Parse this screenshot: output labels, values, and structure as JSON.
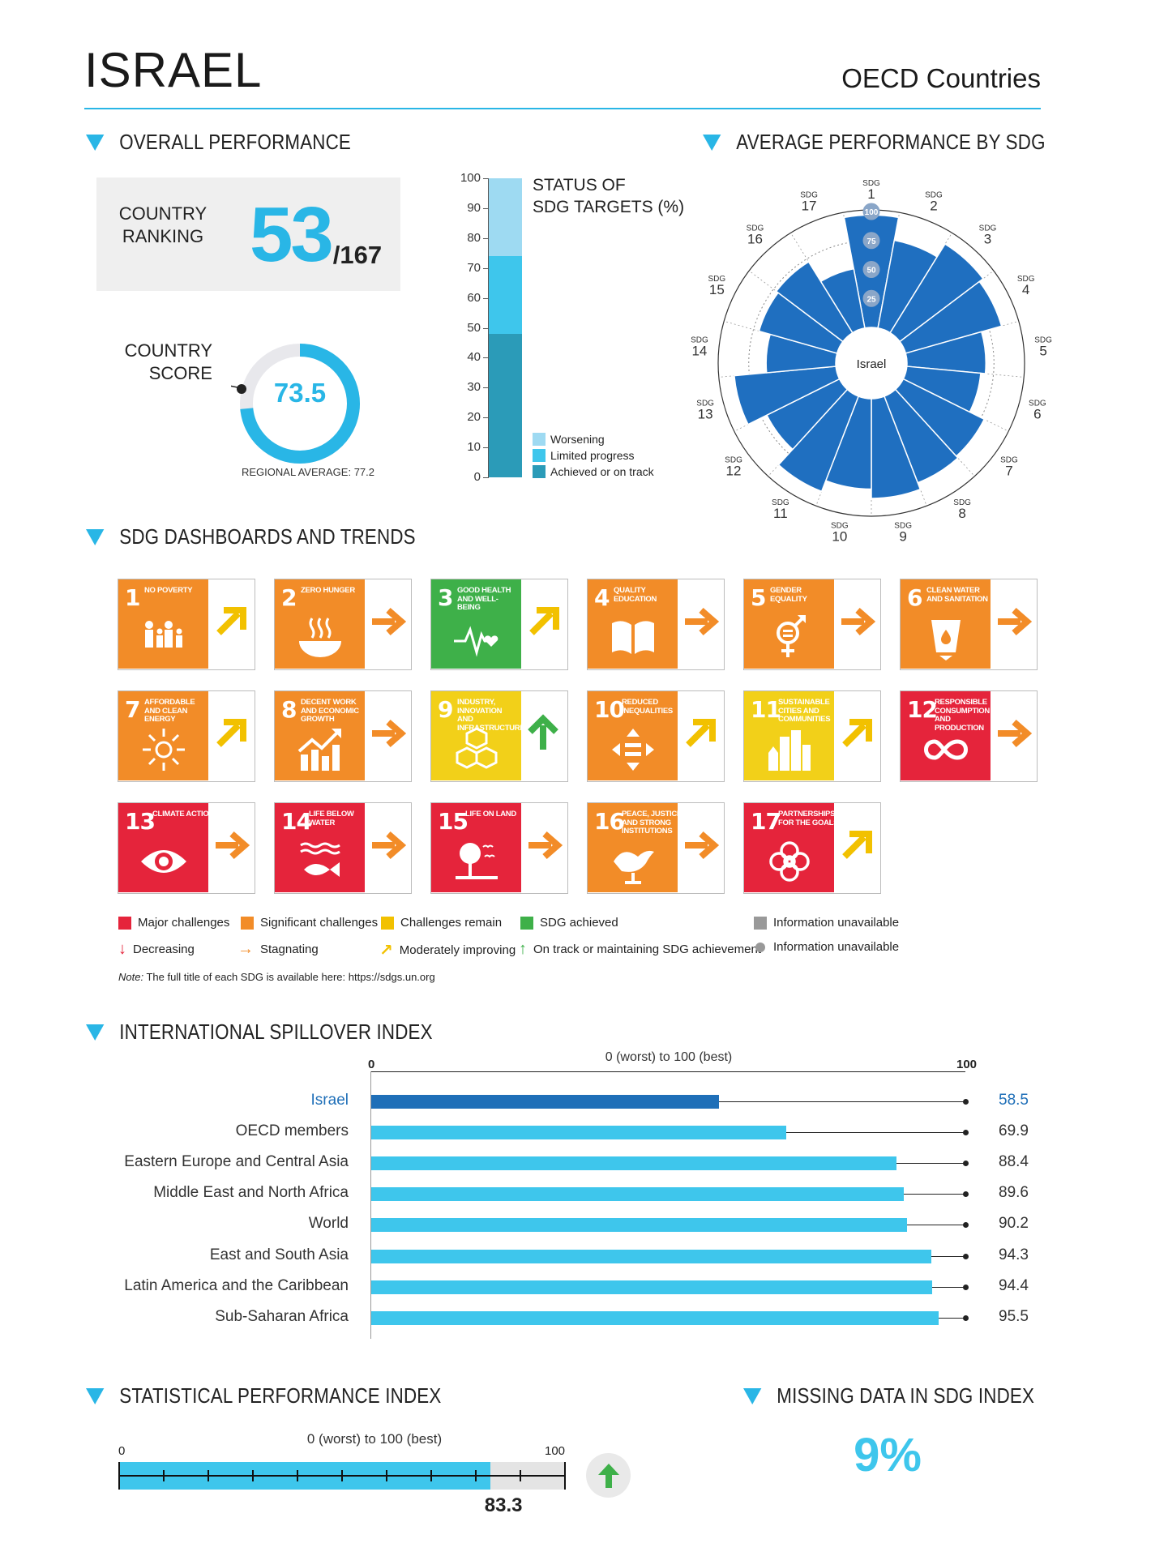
{
  "header": {
    "country": "ISRAEL",
    "group": "OECD Countries"
  },
  "overall": {
    "heading": "OVERALL PERFORMANCE",
    "ranking_label_1": "COUNTRY",
    "ranking_label_2": "RANKING",
    "rank": "53",
    "rank_of": "/167",
    "score_label_1": "COUNTRY",
    "score_label_2": "SCORE",
    "score": "73.5",
    "score_value": 73.5,
    "regional_average": "REGIONAL AVERAGE: 77.2"
  },
  "status": {
    "title_1": "STATUS OF",
    "title_2": "SDG TARGETS (%)",
    "ticks": [
      "100",
      "90",
      "80",
      "70",
      "60",
      "50",
      "40",
      "30",
      "20",
      "10",
      "0"
    ],
    "segments": [
      {
        "name": "Achieved or on track",
        "value": 48,
        "color": "#2b9bb8"
      },
      {
        "name": "Limited progress",
        "value": 26,
        "color": "#3ec6ec"
      },
      {
        "name": "Worsening",
        "value": 26,
        "color": "#9edaf2"
      }
    ],
    "legend": [
      "Worsening",
      "Limited progress",
      "Achieved or on track"
    ]
  },
  "radar": {
    "heading": "AVERAGE PERFORMANCE BY SDG",
    "center_label": "Israel",
    "ring_labels": [
      "100",
      "75",
      "50",
      "25"
    ],
    "sdg_prefix": "SDG",
    "goal_numbers": [
      "1",
      "2",
      "3",
      "4",
      "5",
      "6",
      "7",
      "8",
      "9",
      "10",
      "11",
      "12",
      "13",
      "14",
      "15",
      "16",
      "17"
    ],
    "scores": [
      97,
      77,
      90,
      86,
      68,
      64,
      78,
      80,
      86,
      78,
      88,
      70,
      88,
      60,
      70,
      72,
      52
    ]
  },
  "dashboards": {
    "heading": "SDG DASHBOARDS AND TRENDS",
    "tiles": [
      {
        "num": "1",
        "name": "No poverty",
        "color": "#e5243b",
        "bg": "#f28c28",
        "trend": "moderate",
        "trend_color": "#f2c100",
        "icon": "family-icon"
      },
      {
        "num": "2",
        "name": "Zero hunger",
        "bg": "#f28c28",
        "trend": "stagnating",
        "trend_color": "#f28c28",
        "icon": "bowl-icon"
      },
      {
        "num": "3",
        "name": "Good health and well-being",
        "bg": "#3eb049",
        "trend": "moderate",
        "trend_color": "#f2c100",
        "icon": "heartbeat-icon"
      },
      {
        "num": "4",
        "name": "Quality education",
        "bg": "#f28c28",
        "trend": "stagnating",
        "trend_color": "#f28c28",
        "icon": "book-icon"
      },
      {
        "num": "5",
        "name": "Gender equality",
        "bg": "#f28c28",
        "trend": "stagnating",
        "trend_color": "#f28c28",
        "icon": "gender-icon"
      },
      {
        "num": "6",
        "name": "Clean water and sanitation",
        "bg": "#f28c28",
        "trend": "stagnating",
        "trend_color": "#f28c28",
        "icon": "water-icon"
      },
      {
        "num": "7",
        "name": "Affordable and clean energy",
        "bg": "#f28c28",
        "trend": "moderate",
        "trend_color": "#f2c100",
        "icon": "sun-icon"
      },
      {
        "num": "8",
        "name": "Decent work and economic growth",
        "bg": "#f28c28",
        "trend": "stagnating",
        "trend_color": "#f28c28",
        "icon": "growth-icon"
      },
      {
        "num": "9",
        "name": "Industry, innovation and infrastructure",
        "bg": "#f2d019",
        "trend": "ontrack",
        "trend_color": "#3eb049",
        "icon": "cubes-icon"
      },
      {
        "num": "10",
        "name": "Reduced inequalities",
        "bg": "#f28c28",
        "trend": "moderate",
        "trend_color": "#f2c100",
        "icon": "equality-icon"
      },
      {
        "num": "11",
        "name": "Sustainable cities and communities",
        "bg": "#f2d019",
        "trend": "moderate",
        "trend_color": "#f2c100",
        "icon": "city-icon"
      },
      {
        "num": "12",
        "name": "Responsible consumption and production",
        "bg": "#e5243b",
        "trend": "stagnating",
        "trend_color": "#f28c28",
        "icon": "infinity-icon"
      },
      {
        "num": "13",
        "name": "Climate action",
        "bg": "#e5243b",
        "trend": "stagnating",
        "trend_color": "#f28c28",
        "icon": "eye-icon"
      },
      {
        "num": "14",
        "name": "Life below water",
        "bg": "#e5243b",
        "trend": "stagnating",
        "trend_color": "#f28c28",
        "icon": "fish-icon"
      },
      {
        "num": "15",
        "name": "Life on land",
        "bg": "#e5243b",
        "trend": "stagnating",
        "trend_color": "#f28c28",
        "icon": "tree-icon"
      },
      {
        "num": "16",
        "name": "Peace, justice and strong institutions",
        "bg": "#f28c28",
        "trend": "stagnating",
        "trend_color": "#f28c28",
        "icon": "dove-icon"
      },
      {
        "num": "17",
        "name": "Partnerships for the goals",
        "bg": "#e5243b",
        "trend": "moderate",
        "trend_color": "#f2c100",
        "icon": "rings-icon"
      }
    ],
    "legend": {
      "major": "Major challenges",
      "significant": "Significant challenges",
      "remain": "Challenges remain",
      "achieved": "SDG achieved",
      "na1": "Information unavailable",
      "decreasing": "Decreasing",
      "stagnating": "Stagnating",
      "moderate": "Moderately improving",
      "ontrack": "On track or maintaining SDG achievement",
      "na2": "Information unavailable"
    },
    "note_prefix": "Note:",
    "note": "The full title of each SDG is available here: https://sdgs.un.org",
    "colors": {
      "red": "#e5243b",
      "orange": "#f28c28",
      "yellow": "#f2c100",
      "green": "#3eb049",
      "grey": "#999999"
    }
  },
  "spillover": {
    "heading": "INTERNATIONAL SPILLOVER INDEX",
    "scale_caption": "0 (worst) to 100 (best)",
    "axis_min": "0",
    "axis_max": "100",
    "highlight_color": "#1f6fb8",
    "bar_color": "#3ec6ec",
    "rows": [
      {
        "label": "Israel",
        "value": 58.5,
        "text": "58.5",
        "highlight": true
      },
      {
        "label": "OECD members",
        "value": 69.9,
        "text": "69.9"
      },
      {
        "label": "Eastern Europe and Central Asia",
        "value": 88.4,
        "text": "88.4"
      },
      {
        "label": "Middle East and North Africa",
        "value": 89.6,
        "text": "89.6"
      },
      {
        "label": "World",
        "value": 90.2,
        "text": "90.2"
      },
      {
        "label": "East and South Asia",
        "value": 94.3,
        "text": "94.3"
      },
      {
        "label": "Latin America and the Caribbean",
        "value": 94.4,
        "text": "94.4"
      },
      {
        "label": "Sub-Saharan Africa",
        "value": 95.5,
        "text": "95.5"
      }
    ]
  },
  "spi": {
    "heading": "STATISTICAL PERFORMANCE INDEX",
    "scale_caption": "0 (worst) to 100 (best)",
    "axis_min": "0",
    "axis_max": "100",
    "value": 83.3,
    "value_text": "83.3",
    "trend": "up"
  },
  "missing": {
    "heading": "MISSING DATA IN SDG INDEX",
    "value": "9%"
  }
}
